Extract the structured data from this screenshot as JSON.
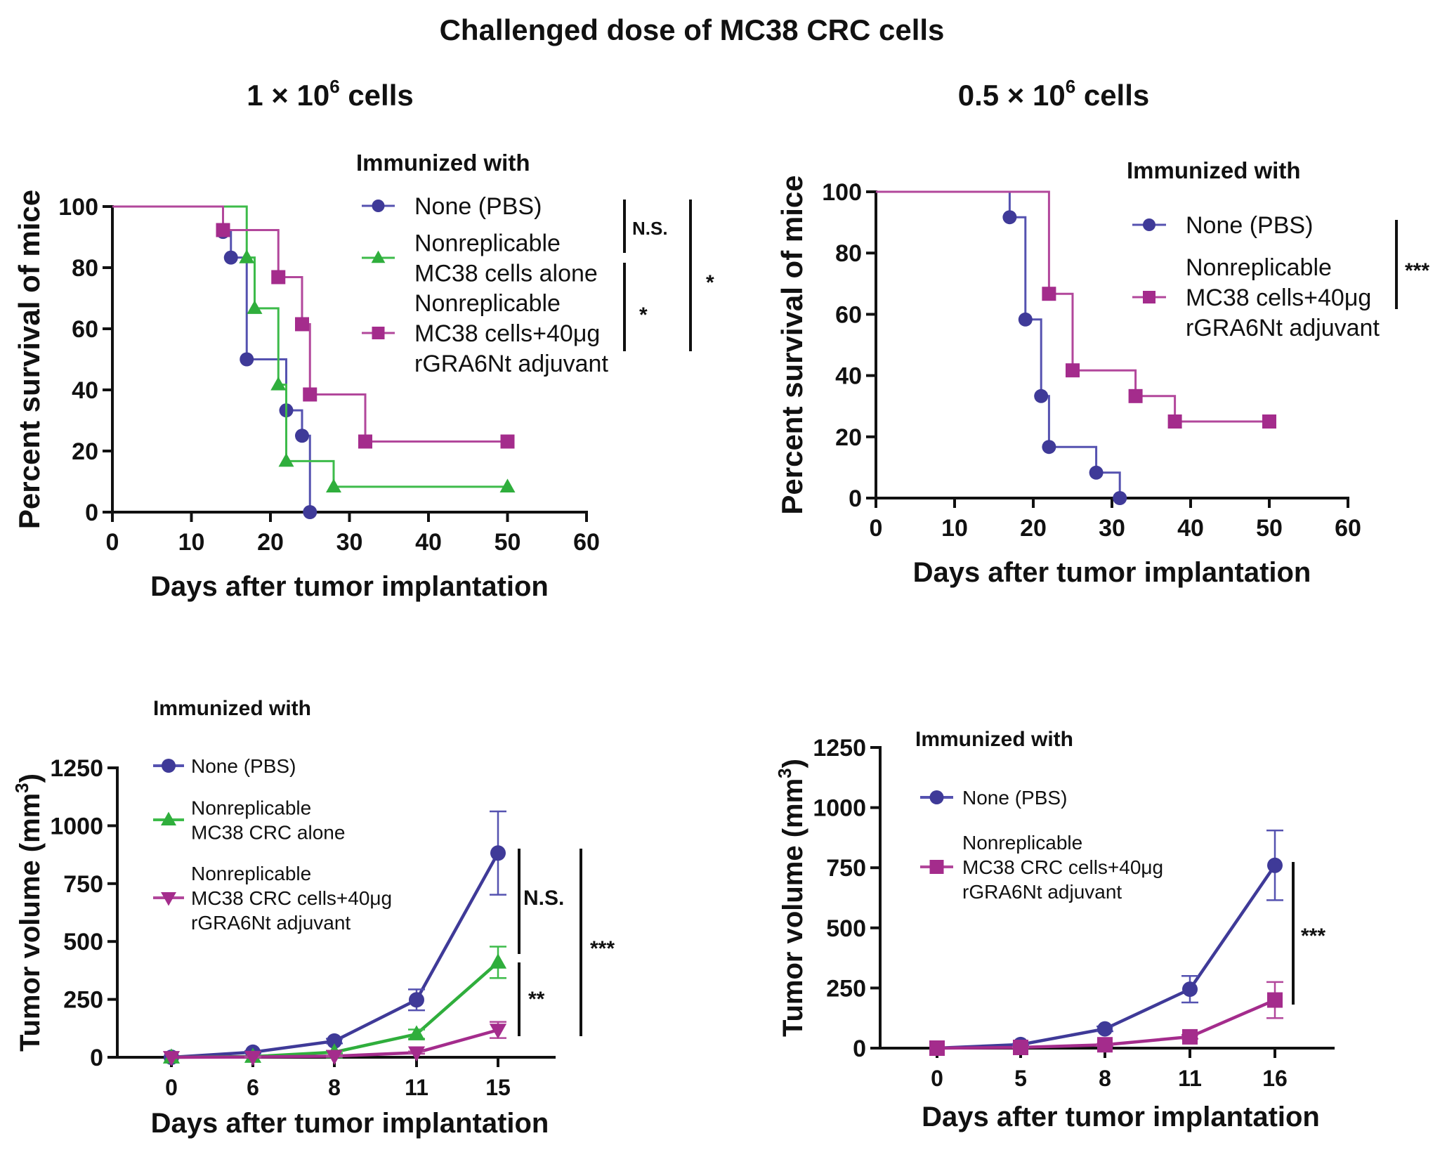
{
  "figure": {
    "title": "Challenged dose of MC38 CRC cells",
    "columns": [
      {
        "prefix": "1 × 10",
        "exponent": "6",
        "suffix": " cells"
      },
      {
        "prefix": "0.5 × 10",
        "exponent": "6",
        "suffix": " cells"
      }
    ]
  },
  "colors": {
    "pbs": "#3f3a98",
    "alone": "#2fae3c",
    "adjuvant": "#a42c8c",
    "pbs_line": "#5552b0",
    "alone_line": "#3dbb4a",
    "adjuvant_line": "#b2479b"
  },
  "chart_data": [
    {
      "id": "survival_1e6",
      "type": "line",
      "subtype": "kaplan-meier-step",
      "title": "1 × 10^6 cells",
      "xlabel": "Days after tumor implantation",
      "ylabel": "Percent survival of mice",
      "xlim": [
        0,
        60
      ],
      "ylim": [
        0,
        100
      ],
      "xticks": [
        0,
        10,
        20,
        30,
        40,
        50,
        60
      ],
      "yticks": [
        0,
        20,
        40,
        60,
        80,
        100
      ],
      "grid": false,
      "legend": {
        "title": "Immunized with",
        "placement": "top-right",
        "entries": [
          {
            "key": "pbs",
            "marker": "circle",
            "lines": [
              "None (PBS)"
            ]
          },
          {
            "key": "alone",
            "marker": "triangle-up",
            "lines": [
              "Nonreplicable",
              "MC38 cells alone"
            ]
          },
          {
            "key": "adjuvant",
            "marker": "square",
            "lines": [
              "Nonreplicable",
              "MC38 cells+40μg",
              "rGRA6Nt adjuvant"
            ]
          }
        ]
      },
      "series": [
        {
          "name": "None (PBS)",
          "key": "pbs",
          "marker": "circle",
          "steps": [
            [
              0,
              100
            ],
            [
              14,
              91.7
            ],
            [
              15,
              83.3
            ],
            [
              17,
              50
            ],
            [
              22,
              33.3
            ],
            [
              24,
              25
            ],
            [
              25,
              0
            ]
          ]
        },
        {
          "name": "Nonreplicable MC38 cells alone",
          "key": "alone",
          "marker": "triangle-up",
          "steps": [
            [
              0,
              100
            ],
            [
              17,
              83.3
            ],
            [
              18,
              66.7
            ],
            [
              21,
              41.7
            ],
            [
              22,
              16.7
            ],
            [
              28,
              8.3
            ]
          ],
          "end_day": 50
        },
        {
          "name": "Nonreplicable MC38 cells+40μg rGRA6Nt adjuvant",
          "key": "adjuvant",
          "marker": "square",
          "steps": [
            [
              0,
              100
            ],
            [
              14,
              92.3
            ],
            [
              21,
              76.9
            ],
            [
              24,
              61.5
            ],
            [
              25,
              38.5
            ],
            [
              32,
              23.1
            ]
          ],
          "end_day": 50
        }
      ],
      "significance": [
        {
          "label": "N.S.",
          "between": [
            "pbs",
            "alone"
          ]
        },
        {
          "label": "*",
          "between": [
            "alone",
            "adjuvant"
          ]
        },
        {
          "label": "*",
          "between": [
            "pbs",
            "adjuvant"
          ]
        }
      ]
    },
    {
      "id": "survival_05e6",
      "type": "line",
      "subtype": "kaplan-meier-step",
      "title": "0.5 × 10^6 cells",
      "xlabel": "Days after tumor implantation",
      "ylabel": "Percent survival of mice",
      "xlim": [
        0,
        60
      ],
      "ylim": [
        0,
        100
      ],
      "xticks": [
        0,
        10,
        20,
        30,
        40,
        50,
        60
      ],
      "yticks": [
        0,
        20,
        40,
        60,
        80,
        100
      ],
      "grid": false,
      "legend": {
        "title": "Immunized with",
        "placement": "top-right",
        "entries": [
          {
            "key": "pbs",
            "marker": "circle",
            "lines": [
              "None (PBS)"
            ]
          },
          {
            "key": "adjuvant",
            "marker": "square",
            "lines": [
              "Nonreplicable",
              "MC38 cells+40μg",
              "rGRA6Nt adjuvant"
            ]
          }
        ]
      },
      "series": [
        {
          "name": "None (PBS)",
          "key": "pbs",
          "marker": "circle",
          "steps": [
            [
              0,
              100
            ],
            [
              17,
              91.7
            ],
            [
              19,
              58.3
            ],
            [
              21,
              33.3
            ],
            [
              22,
              16.7
            ],
            [
              28,
              8.3
            ],
            [
              31,
              0
            ]
          ]
        },
        {
          "name": "Nonreplicable MC38 cells+40μg rGRA6Nt adjuvant",
          "key": "adjuvant",
          "marker": "square",
          "steps": [
            [
              0,
              100
            ],
            [
              22,
              66.7
            ],
            [
              25,
              41.7
            ],
            [
              33,
              33.3
            ],
            [
              38,
              25
            ]
          ],
          "end_day": 50
        }
      ],
      "significance": [
        {
          "label": "***",
          "between": [
            "pbs",
            "adjuvant"
          ]
        }
      ]
    },
    {
      "id": "tumor_1e6",
      "type": "line",
      "subtype": "mean-with-error-bars",
      "xlabel": "Days after tumor implantation",
      "ylabel": "Tumor volume (mm",
      "ylabel_sup": "3",
      "ylabel_end": ")",
      "categories": [
        "0",
        "6",
        "8",
        "11",
        "15"
      ],
      "ylim": [
        0,
        1250
      ],
      "yticks": [
        0,
        250,
        500,
        750,
        1000,
        1250
      ],
      "grid": false,
      "legend": {
        "title": "Immunized with",
        "placement": "top-left",
        "entries": [
          {
            "key": "pbs",
            "marker": "circle",
            "lines": [
              "None (PBS)"
            ]
          },
          {
            "key": "alone",
            "marker": "triangle-up",
            "lines": [
              "Nonreplicable",
              "MC38 CRC alone"
            ]
          },
          {
            "key": "adjuvant",
            "marker": "triangle-down",
            "lines": [
              "Nonreplicable",
              "MC38 CRC cells+40μg",
              "rGRA6Nt adjuvant"
            ]
          }
        ]
      },
      "series": [
        {
          "name": "None (PBS)",
          "key": "pbs",
          "marker": "circle",
          "values": [
            0,
            22,
            70,
            248,
            882
          ],
          "errors": [
            0,
            5,
            10,
            45,
            180
          ]
        },
        {
          "name": "Nonreplicable MC38 CRC alone",
          "key": "alone",
          "marker": "triangle-up",
          "values": [
            0,
            3,
            22,
            100,
            410
          ],
          "errors": [
            0,
            2,
            5,
            20,
            68
          ]
        },
        {
          "name": "Nonreplicable MC38 CRC cells+40μg rGRA6Nt adjuvant",
          "key": "adjuvant",
          "marker": "triangle-down",
          "values": [
            0,
            1,
            5,
            20,
            118
          ],
          "errors": [
            0,
            1,
            2,
            5,
            35
          ]
        }
      ],
      "significance": [
        {
          "label": "N.S.",
          "between": [
            "pbs",
            "alone"
          ]
        },
        {
          "label": "**",
          "between": [
            "alone",
            "adjuvant"
          ]
        },
        {
          "label": "***",
          "between": [
            "pbs",
            "adjuvant"
          ]
        }
      ]
    },
    {
      "id": "tumor_05e6",
      "type": "line",
      "subtype": "mean-with-error-bars",
      "xlabel": "Days after tumor implantation",
      "ylabel": "Tumor volume (mm",
      "ylabel_sup": "3",
      "ylabel_end": ")",
      "categories": [
        "0",
        "5",
        "8",
        "11",
        "16"
      ],
      "ylim": [
        0,
        1250
      ],
      "yticks": [
        0,
        250,
        500,
        750,
        1000,
        1250
      ],
      "grid": false,
      "legend": {
        "title": "Immunized with",
        "placement": "top-left",
        "entries": [
          {
            "key": "pbs",
            "marker": "circle",
            "lines": [
              "None (PBS)"
            ]
          },
          {
            "key": "adjuvant",
            "marker": "square",
            "lines": [
              "Nonreplicable",
              "MC38 CRC cells+40μg",
              "rGRA6Nt adjuvant"
            ]
          }
        ]
      },
      "series": [
        {
          "name": "None (PBS)",
          "key": "pbs",
          "marker": "circle",
          "values": [
            0,
            15,
            80,
            245,
            760
          ],
          "errors": [
            0,
            3,
            10,
            55,
            145
          ]
        },
        {
          "name": "Nonreplicable MC38 CRC cells+40μg rGRA6Nt adjuvant",
          "key": "adjuvant",
          "marker": "square",
          "values": [
            0,
            3,
            14,
            47,
            200
          ],
          "errors": [
            0,
            1,
            4,
            8,
            75
          ]
        }
      ],
      "significance": [
        {
          "label": "***",
          "between": [
            "pbs",
            "adjuvant"
          ]
        }
      ]
    }
  ]
}
